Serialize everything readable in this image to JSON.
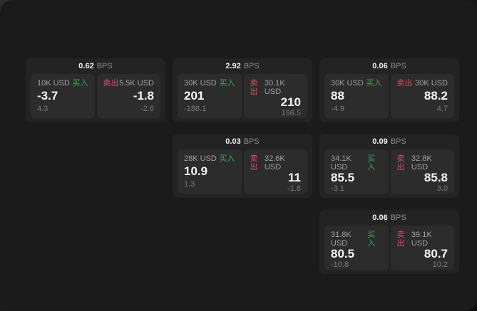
{
  "labels": {
    "bps_unit": "BPS",
    "buy": "买入",
    "sell": "卖出"
  },
  "colors": {
    "page_background": "#1b1b1b",
    "card_background": "#232323",
    "tile_background": "#2c2c2c",
    "buy_accent": "#35aa58",
    "sell_accent": "#d15069",
    "price_text": "#f7f7f7",
    "muted_text": "#8b8b8b"
  },
  "cards": [
    {
      "bps": "0.62",
      "buy": {
        "amount": "10K USD",
        "price": "-3.7",
        "delta": "4.3"
      },
      "sell": {
        "amount": "5.5K USD",
        "price": "-1.8",
        "delta": "-2.6"
      }
    },
    {
      "bps": "2.92",
      "buy": {
        "amount": "30K USD",
        "price": "201",
        "delta": "-188.1"
      },
      "sell": {
        "amount": "30.1K USD",
        "price": "210",
        "delta": "196.5"
      }
    },
    {
      "bps": "0.06",
      "buy": {
        "amount": "30K USD",
        "price": "88",
        "delta": "-4.9"
      },
      "sell": {
        "amount": "30K USD",
        "price": "88.2",
        "delta": "4.7"
      }
    },
    {
      "bps": "0.03",
      "buy": {
        "amount": "28K USD",
        "price": "10.9",
        "delta": "1.3"
      },
      "sell": {
        "amount": "32.6K USD",
        "price": "11",
        "delta": "-1.8"
      }
    },
    {
      "bps": "0.09",
      "buy": {
        "amount": "34.1K USD",
        "price": "85.5",
        "delta": "-3.1"
      },
      "sell": {
        "amount": "32.8K USD",
        "price": "85.8",
        "delta": "3.0"
      }
    },
    {
      "bps": "0.06",
      "buy": {
        "amount": "31.8K USD",
        "price": "80.5",
        "delta": "-10.8"
      },
      "sell": {
        "amount": "39.1K USD",
        "price": "80.7",
        "delta": "10.2"
      }
    }
  ]
}
